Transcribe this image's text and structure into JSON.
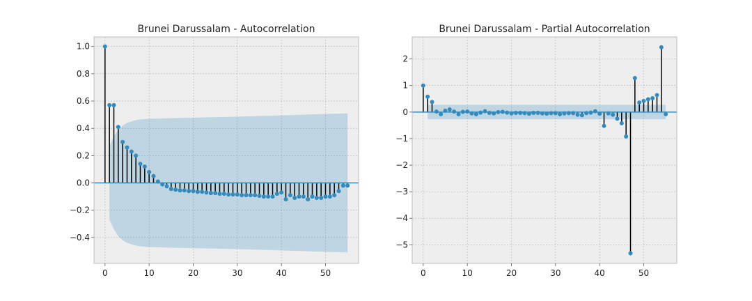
{
  "chart_data": [
    {
      "type": "stem",
      "title": "Brunei Darussalam - Autocorrelation",
      "xlabel": "",
      "ylabel": "",
      "xlim": [
        -2.5,
        57.5
      ],
      "ylim": [
        -0.59,
        1.07
      ],
      "xticks": [
        0,
        10,
        20,
        30,
        40,
        50
      ],
      "yticks": [
        -0.4,
        -0.2,
        0.0,
        0.2,
        0.4,
        0.6,
        0.8,
        1.0
      ],
      "ytick_labels": [
        "−0.4",
        "−0.2",
        "0.0",
        "0.2",
        "0.4",
        "0.6",
        "0.8",
        "1.0"
      ],
      "grid": true,
      "confidence_band": {
        "x": [
          1,
          2,
          3,
          4,
          5,
          6,
          7,
          8,
          9,
          10,
          12,
          15,
          20,
          30,
          40,
          50,
          55
        ],
        "upper": [
          0.27,
          0.34,
          0.39,
          0.42,
          0.44,
          0.45,
          0.46,
          0.465,
          0.468,
          0.47,
          0.472,
          0.475,
          0.478,
          0.485,
          0.495,
          0.505,
          0.51
        ]
      },
      "x": [
        0,
        1,
        2,
        3,
        4,
        5,
        6,
        7,
        8,
        9,
        10,
        11,
        12,
        13,
        14,
        15,
        16,
        17,
        18,
        19,
        20,
        21,
        22,
        23,
        24,
        25,
        26,
        27,
        28,
        29,
        30,
        31,
        32,
        33,
        34,
        35,
        36,
        37,
        38,
        39,
        40,
        41,
        42,
        43,
        44,
        45,
        46,
        47,
        48,
        49,
        50,
        51,
        52,
        53,
        54,
        55
      ],
      "values": [
        1.0,
        0.57,
        0.57,
        0.41,
        0.3,
        0.26,
        0.23,
        0.2,
        0.14,
        0.12,
        0.08,
        0.05,
        0.01,
        -0.01,
        -0.025,
        -0.045,
        -0.05,
        -0.055,
        -0.055,
        -0.06,
        -0.06,
        -0.065,
        -0.065,
        -0.07,
        -0.075,
        -0.075,
        -0.08,
        -0.08,
        -0.085,
        -0.085,
        -0.085,
        -0.09,
        -0.09,
        -0.09,
        -0.09,
        -0.095,
        -0.1,
        -0.1,
        -0.1,
        -0.08,
        -0.07,
        -0.12,
        -0.09,
        -0.11,
        -0.1,
        -0.1,
        -0.12,
        -0.1,
        -0.11,
        -0.11,
        -0.1,
        -0.1,
        -0.09,
        -0.06,
        -0.02,
        -0.02
      ],
      "colors": {
        "marker": "#348abd",
        "stem": "#000000",
        "baseline": "#348abd",
        "band": "#348abd",
        "background": "#eeeeee",
        "grid": "#b2b2b2"
      }
    },
    {
      "type": "stem",
      "title": "Brunei Darussalam - Partial Autocorrelation",
      "xlabel": "",
      "ylabel": "",
      "xlim": [
        -2.5,
        57.5
      ],
      "ylim": [
        -5.7,
        2.83
      ],
      "xticks": [
        0,
        10,
        20,
        30,
        40,
        50
      ],
      "yticks": [
        -5,
        -4,
        -3,
        -2,
        -1,
        0,
        1,
        2
      ],
      "ytick_labels": [
        "−5",
        "−4",
        "−3",
        "−2",
        "−1",
        "0",
        "1",
        "2"
      ],
      "grid": true,
      "confidence_band": {
        "x": [
          1,
          55
        ],
        "upper": [
          0.27,
          0.27
        ]
      },
      "x": [
        0,
        1,
        2,
        3,
        4,
        5,
        6,
        7,
        8,
        9,
        10,
        11,
        12,
        13,
        14,
        15,
        16,
        17,
        18,
        19,
        20,
        21,
        22,
        23,
        24,
        25,
        26,
        27,
        28,
        29,
        30,
        31,
        32,
        33,
        34,
        35,
        36,
        37,
        38,
        39,
        40,
        41,
        42,
        43,
        44,
        45,
        46,
        47,
        48,
        49,
        50,
        51,
        52,
        53,
        54,
        55
      ],
      "values": [
        1.0,
        0.58,
        0.38,
        0.02,
        -0.08,
        0.05,
        0.1,
        0.02,
        -0.08,
        0.01,
        0.02,
        -0.05,
        -0.08,
        -0.02,
        0.03,
        -0.03,
        -0.05,
        0.0,
        0.01,
        -0.02,
        -0.05,
        -0.03,
        -0.03,
        -0.04,
        -0.06,
        -0.03,
        -0.03,
        -0.05,
        -0.06,
        -0.04,
        -0.04,
        -0.08,
        -0.05,
        -0.04,
        -0.04,
        -0.1,
        -0.12,
        -0.04,
        -0.02,
        0.03,
        -0.06,
        -0.52,
        -0.05,
        -0.1,
        -0.25,
        -0.42,
        -0.92,
        -5.32,
        1.28,
        0.36,
        0.42,
        0.48,
        0.52,
        0.64,
        2.44,
        -0.08
      ],
      "colors": {
        "marker": "#348abd",
        "stem": "#000000",
        "baseline": "#348abd",
        "band": "#348abd",
        "background": "#eeeeee",
        "grid": "#b2b2b2"
      }
    }
  ]
}
